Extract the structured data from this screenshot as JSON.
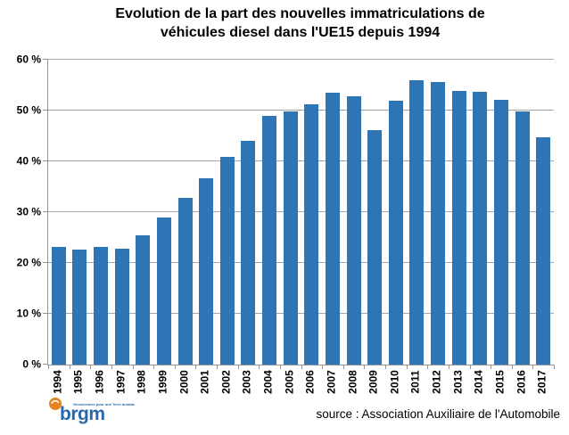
{
  "chart": {
    "title_line1": "Evolution de la part des nouvelles immatriculations de",
    "title_line2": "véhicules diesel dans l'UE15 depuis 1994"
  },
  "chart_data": {
    "type": "bar",
    "title": "Evolution de la part des nouvelles immatriculations de véhicules diesel dans l'UE15 depuis 1994",
    "categories": [
      "1994",
      "1995",
      "1996",
      "1997",
      "1998",
      "1999",
      "2000",
      "2001",
      "2002",
      "2003",
      "2004",
      "2005",
      "2006",
      "2007",
      "2008",
      "2009",
      "2010",
      "2011",
      "2012",
      "2013",
      "2014",
      "2015",
      "2016",
      "2017"
    ],
    "values": [
      23.2,
      22.6,
      23.1,
      22.8,
      25.4,
      29.0,
      32.8,
      36.6,
      40.9,
      44.1,
      48.9,
      49.8,
      51.3,
      53.5,
      52.8,
      46.1,
      52.0,
      56.0,
      55.6,
      53.8,
      53.6,
      52.1,
      49.9,
      44.7
    ],
    "xlabel": "",
    "ylabel": "",
    "ylim": [
      0,
      60
    ],
    "ytick_step": 10,
    "yticks": [
      "0 %",
      "10 %",
      "20 %",
      "30 %",
      "40 %",
      "50 %",
      "60 %"
    ],
    "grid": true,
    "legend": "none",
    "x_label_rotation_deg": -90,
    "colors": {
      "bar": "#2e75b5",
      "gridline": "#a6a6a6",
      "axis": "#969696",
      "text": "#000000"
    }
  },
  "footer": {
    "source_label": "source : Association Auxiliaire de l'Automobile",
    "brgm_logo": {
      "text": "brgm",
      "tagline": "Géosciences pour une Terre durable",
      "circle_color": "#e8821e",
      "text_color": "#2767ae"
    }
  }
}
